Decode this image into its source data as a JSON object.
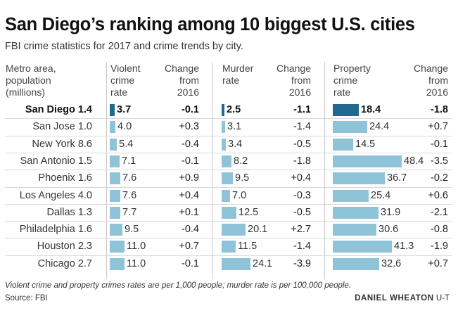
{
  "title": "San Diego’s ranking among 10 biggest U.S. cities",
  "subtitle": "FBI crime statistics for 2017 and crime trends by city.",
  "headers": {
    "metro": "Metro area,\npopulation\n(millions)",
    "violent": "Violent\ncrime\nrate",
    "violent_change": "Change\nfrom\n2016",
    "murder": "Murder\nrate",
    "murder_change": "Change\nfrom\n2016",
    "property": "Property\ncrime\nrate",
    "property_change": "Change\nfrom\n2016"
  },
  "note": "Violent crime and property crimes rates are per 1,000 people; murder rate is per 100,000 people.",
  "source": "Source: FBI",
  "credit_name": "DANIEL WHEATON",
  "credit_org": "U-T",
  "colors": {
    "bar": "#8fc4d8",
    "highlight_bar": "#1f6a8f"
  },
  "chart_data": {
    "type": "bar",
    "categories": [
      "San Diego 1.4",
      "San Jose 1.0",
      "New York 8.6",
      "San Antonio 1.5",
      "Phoenix 1.6",
      "Los Angeles 4.0",
      "Dallas 1.3",
      "Philadelphia 1.6",
      "Houston 2.3",
      "Chicago 2.7"
    ],
    "highlight": "San Diego 1.4",
    "series": [
      {
        "name": "Violent crime rate",
        "values": [
          "3.7",
          "4.0",
          "5.4",
          "7.1",
          "7.6",
          "7.6",
          "7.7",
          "9.5",
          "11.0",
          "11.0"
        ],
        "change": [
          "-0.1",
          "+0.3",
          "-0.4",
          "-0.1",
          "+0.9",
          "+0.4",
          "+0.1",
          "-0.4",
          "+0.7",
          "-0.1"
        ],
        "max": 11.0
      },
      {
        "name": "Murder rate",
        "values": [
          "2.5",
          "3.1",
          "3.4",
          "8.2",
          "9.5",
          "7.0",
          "12.5",
          "20.1",
          "11.5",
          "24.1"
        ],
        "change": [
          "-1.1",
          "-1.4",
          "-0.5",
          "-1.8",
          "+0.4",
          "-0.3",
          "-0.5",
          "+2.7",
          "-1.4",
          "-3.9"
        ],
        "max": 24.1
      },
      {
        "name": "Property crime rate",
        "values": [
          "18.4",
          "24.4",
          "14.5",
          "48.4",
          "36.7",
          "25.4",
          "31.9",
          "30.6",
          "41.3",
          "32.6"
        ],
        "change": [
          "-1.8",
          "+0.7",
          "-0.1",
          "-3.5",
          "-0.2",
          "+0.6",
          "-2.1",
          "-0.8",
          "-1.9",
          "+0.7"
        ],
        "max": 48.4
      }
    ]
  }
}
